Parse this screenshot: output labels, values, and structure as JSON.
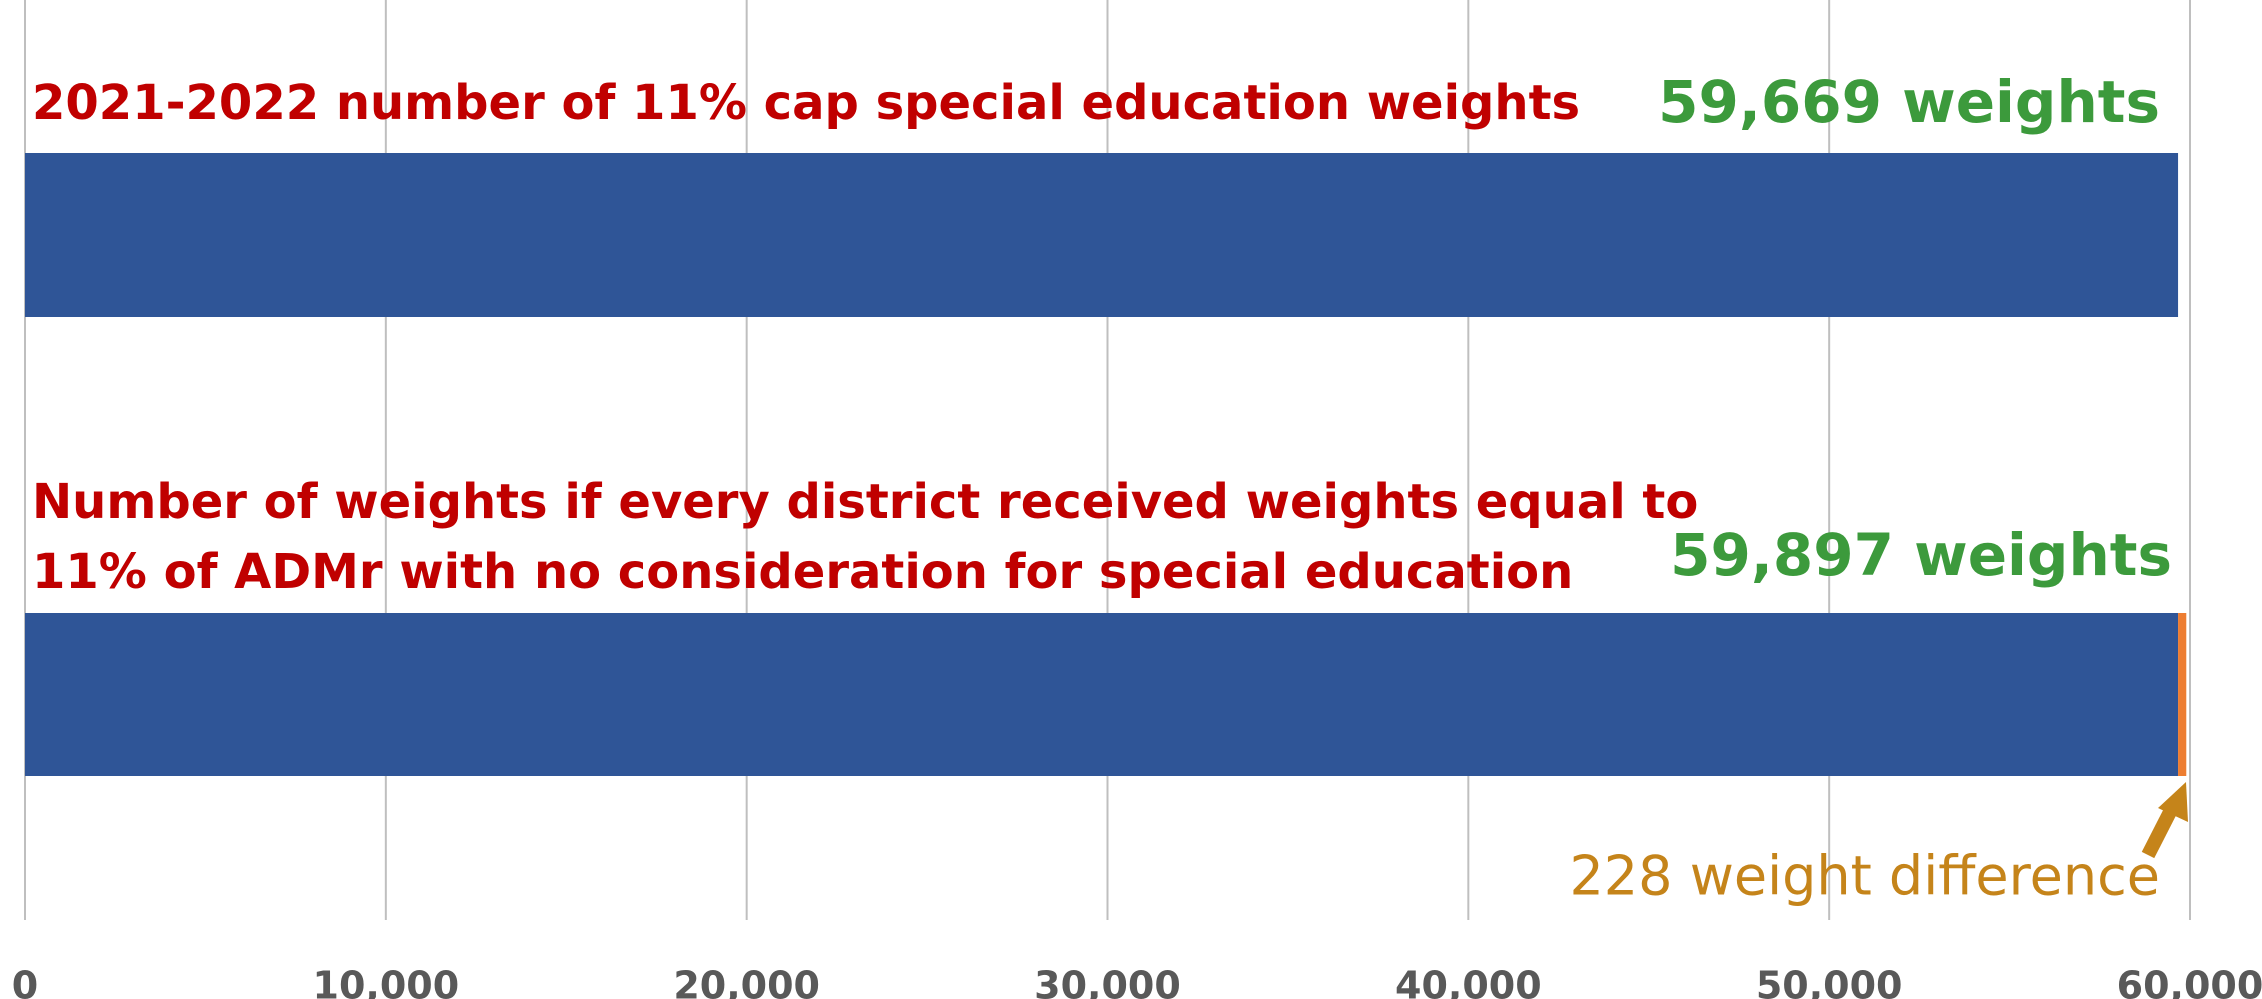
{
  "chart_data": {
    "type": "bar",
    "orientation": "horizontal",
    "stacked": true,
    "categories": [
      "2021-2022 number of 11% cap special education weights",
      "Number of weights if every district received weights equal to\n11% of ADMr with no consideration for special education"
    ],
    "series": [
      {
        "color": "#2f5597",
        "values": [
          59669,
          59669
        ]
      },
      {
        "color": "#ed7d31",
        "values": [
          null,
          228
        ]
      }
    ],
    "annotations": [
      {
        "text": "59,669 weights",
        "color": "#3c9a3c"
      },
      {
        "text": "59,897 weights",
        "color": "#3c9a3c"
      },
      {
        "text": "228 weight difference",
        "color": "#c5841a"
      }
    ],
    "xlim": [
      0,
      60000
    ],
    "xticks": [
      0,
      {
        "value": 10000,
        "label": "10,000"
      },
      {
        "value": 20000,
        "label": "20,000"
      },
      {
        "value": 30000,
        "label": "30,000"
      },
      {
        "value": 40000,
        "label": "40,000"
      },
      {
        "value": 50000,
        "label": "50,000"
      },
      {
        "value": 60000,
        "label": "60,000"
      }
    ],
    "grid": true
  }
}
